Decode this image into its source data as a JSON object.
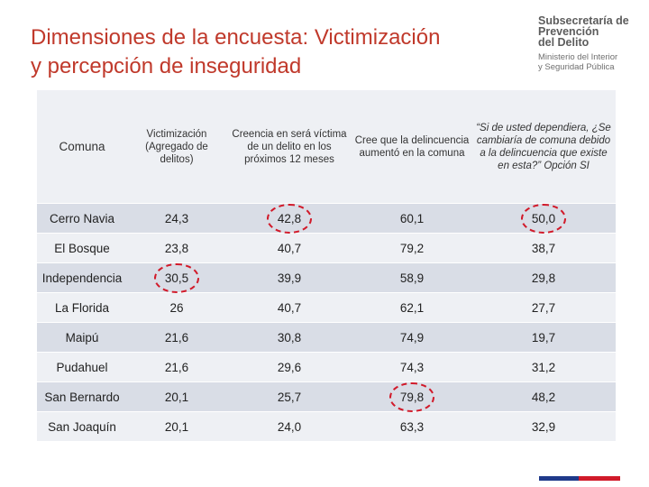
{
  "title": {
    "line1": "Dimensiones de la encuesta: Victimización",
    "line2": "y percepción de inseguridad"
  },
  "logo": {
    "org_line1": "Subsecretaría de",
    "org_line2": "Prevención",
    "org_line3": "del Delito",
    "ministry_line1": "Ministerio del Interior",
    "ministry_line2": "y Seguridad Pública"
  },
  "table": {
    "headers": [
      "Comuna",
      "Victimización (Agregado de delitos)",
      "Creencia en será víctima de un delito en los próximos 12 meses",
      "Cree que la delincuencia aumentó en la comuna",
      "“Si de usted dependiera, ¿Se cambiaría de comuna debido a la delincuencia que existe en esta?” Opción SI"
    ],
    "rows": [
      {
        "comuna": "Cerro Navia",
        "victimizacion": "24,3",
        "creencia": "42,8",
        "aumento": "60,1",
        "cambio": "50,0"
      },
      {
        "comuna": "El Bosque",
        "victimizacion": "23,8",
        "creencia": "40,7",
        "aumento": "79,2",
        "cambio": "38,7"
      },
      {
        "comuna": "Independencia",
        "victimizacion": "30,5",
        "creencia": "39,9",
        "aumento": "58,9",
        "cambio": "29,8"
      },
      {
        "comuna": "La Florida",
        "victimizacion": "26",
        "creencia": "40,7",
        "aumento": "62,1",
        "cambio": "27,7"
      },
      {
        "comuna": "Maipú",
        "victimizacion": "21,6",
        "creencia": "30,8",
        "aumento": "74,9",
        "cambio": "19,7"
      },
      {
        "comuna": "Pudahuel",
        "victimizacion": "21,6",
        "creencia": "29,6",
        "aumento": "74,3",
        "cambio": "31,2"
      },
      {
        "comuna": "San Bernardo",
        "victimizacion": "20,1",
        "creencia": "25,7",
        "aumento": "79,8",
        "cambio": "48,2"
      },
      {
        "comuna": "San Joaquín",
        "victimizacion": "20,1",
        "creencia": "24,0",
        "aumento": "63,3",
        "cambio": "32,9"
      }
    ]
  },
  "colors": {
    "title": "#c0392b",
    "highlight": "#d11a2a",
    "row_dark": "#d9dde6",
    "row_light": "#eef0f4",
    "bar_blue": "#1f3a8a",
    "bar_red": "#d11a2a"
  }
}
